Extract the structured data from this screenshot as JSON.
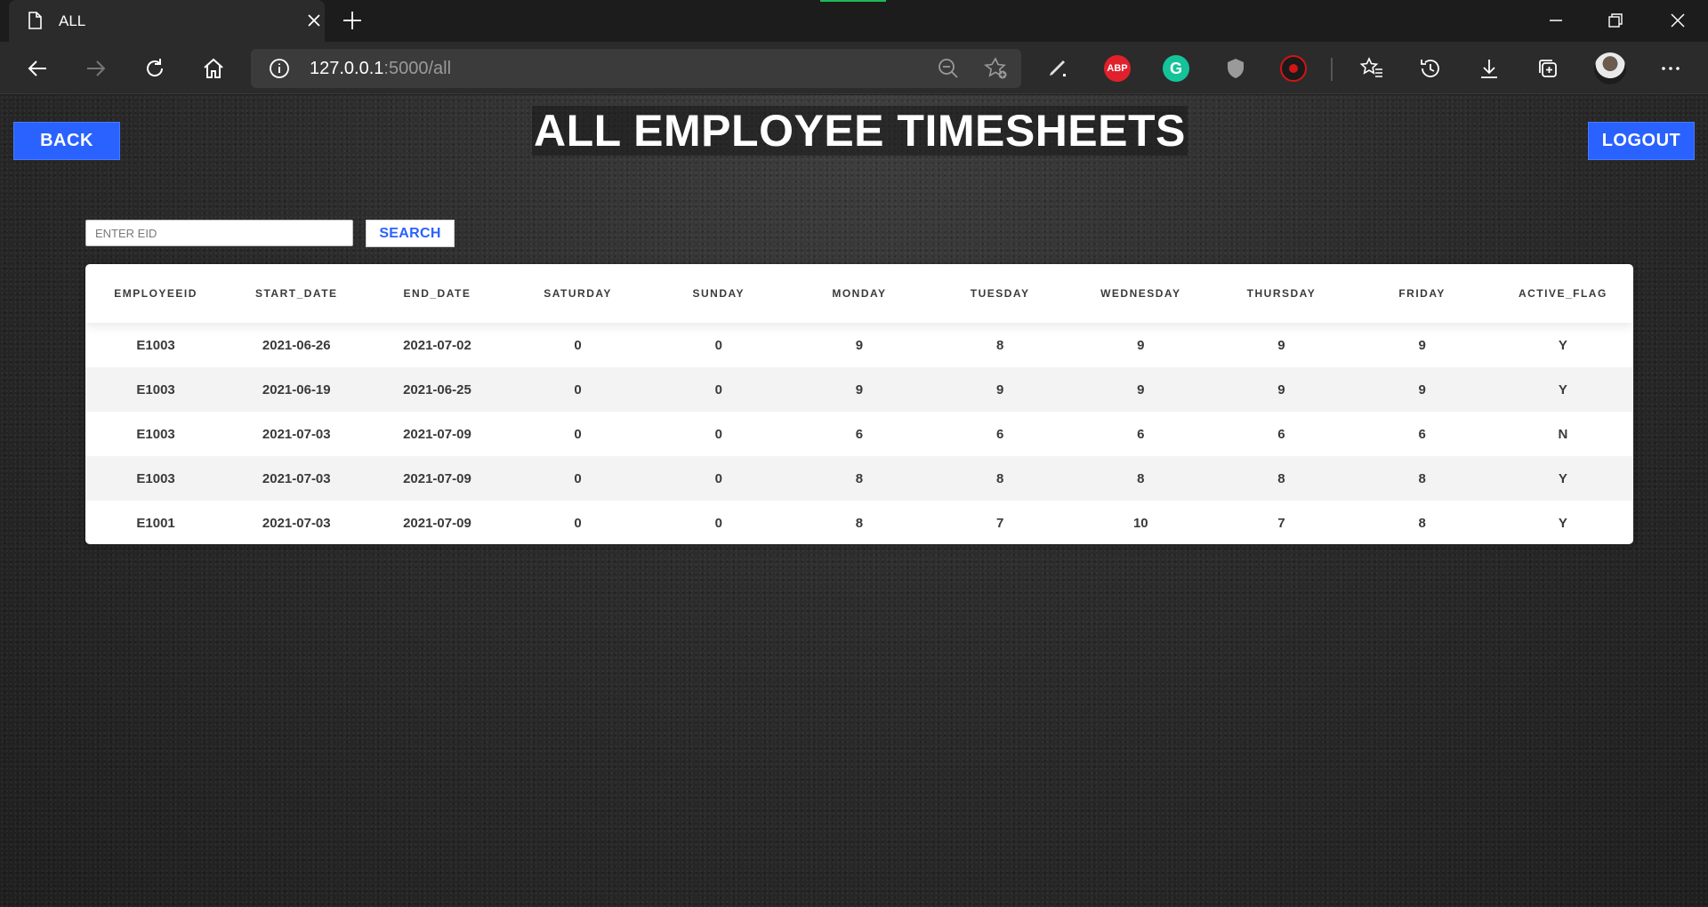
{
  "browser": {
    "tab_title": "ALL",
    "url_host": "127.0.0.1",
    "url_rest": ":5000/all",
    "extensions": {
      "abp_label": "ABP",
      "grammarly_label": "G"
    }
  },
  "page": {
    "back_label": "BACK",
    "title": "ALL EMPLOYEE TIMESHEETS",
    "logout_label": "LOGOUT",
    "search": {
      "placeholder": "ENTER EID",
      "button_label": "SEARCH"
    }
  },
  "table": {
    "columns": [
      "EMPLOYEEID",
      "START_DATE",
      "END_DATE",
      "SATURDAY",
      "SUNDAY",
      "MONDAY",
      "TUESDAY",
      "WEDNESDAY",
      "THURSDAY",
      "FRIDAY",
      "ACTIVE_FLAG"
    ],
    "rows": [
      [
        "E1003",
        "2021-06-26",
        "2021-07-02",
        "0",
        "0",
        "9",
        "8",
        "9",
        "9",
        "9",
        "Y"
      ],
      [
        "E1003",
        "2021-06-19",
        "2021-06-25",
        "0",
        "0",
        "9",
        "9",
        "9",
        "9",
        "9",
        "Y"
      ],
      [
        "E1003",
        "2021-07-03",
        "2021-07-09",
        "0",
        "0",
        "6",
        "6",
        "6",
        "6",
        "6",
        "N"
      ],
      [
        "E1003",
        "2021-07-03",
        "2021-07-09",
        "0",
        "0",
        "8",
        "8",
        "8",
        "8",
        "8",
        "Y"
      ],
      [
        "E1001",
        "2021-07-03",
        "2021-07-09",
        "0",
        "0",
        "8",
        "7",
        "10",
        "7",
        "8",
        "Y"
      ]
    ]
  },
  "colors": {
    "accent": "#2962ff"
  }
}
